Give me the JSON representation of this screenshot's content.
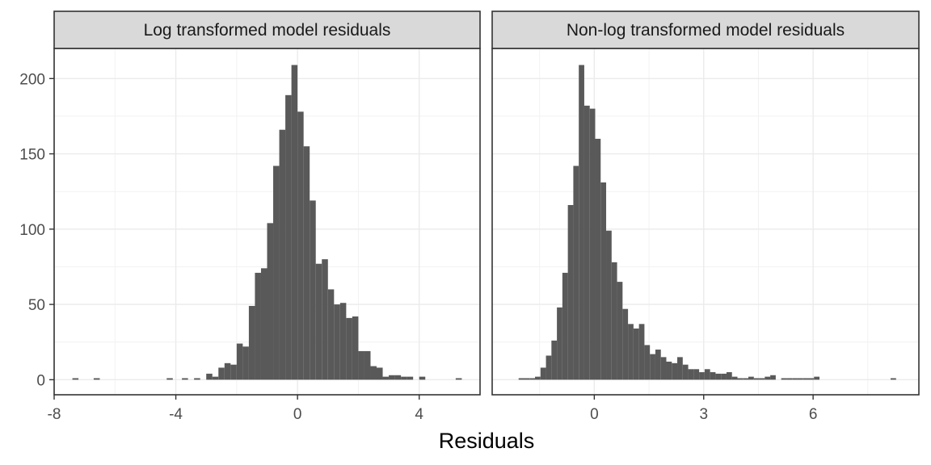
{
  "chart_data": {
    "type": "bar",
    "xlabel": "Residuals",
    "ylabel": "",
    "ylim": [
      -10,
      220
    ],
    "y_ticks": [
      0,
      50,
      100,
      150,
      200
    ],
    "bar_color": "#595959",
    "grid": true,
    "panels": [
      {
        "title": "Log transformed model residuals",
        "xlim": [
          -8,
          6
        ],
        "x_ticks": [
          -8,
          -4,
          0,
          4
        ],
        "x_tick_labels": [
          "-8",
          "-4",
          "0",
          "4"
        ],
        "bin_width": 0.2,
        "bins": [
          {
            "x": -7.3,
            "y": 1
          },
          {
            "x": -6.6,
            "y": 1
          },
          {
            "x": -4.2,
            "y": 1
          },
          {
            "x": -3.7,
            "y": 1
          },
          {
            "x": -3.3,
            "y": 1
          },
          {
            "x": -2.9,
            "y": 4
          },
          {
            "x": -2.7,
            "y": 2
          },
          {
            "x": -2.5,
            "y": 8
          },
          {
            "x": -2.3,
            "y": 11
          },
          {
            "x": -2.1,
            "y": 10
          },
          {
            "x": -1.9,
            "y": 24
          },
          {
            "x": -1.7,
            "y": 22
          },
          {
            "x": -1.5,
            "y": 49
          },
          {
            "x": -1.3,
            "y": 71
          },
          {
            "x": -1.1,
            "y": 74
          },
          {
            "x": -0.9,
            "y": 104
          },
          {
            "x": -0.7,
            "y": 142
          },
          {
            "x": -0.5,
            "y": 166
          },
          {
            "x": -0.3,
            "y": 189
          },
          {
            "x": -0.1,
            "y": 209
          },
          {
            "x": 0.1,
            "y": 178
          },
          {
            "x": 0.3,
            "y": 155
          },
          {
            "x": 0.5,
            "y": 119
          },
          {
            "x": 0.7,
            "y": 77
          },
          {
            "x": 0.9,
            "y": 80
          },
          {
            "x": 1.1,
            "y": 60
          },
          {
            "x": 1.3,
            "y": 50
          },
          {
            "x": 1.5,
            "y": 51
          },
          {
            "x": 1.7,
            "y": 41
          },
          {
            "x": 1.9,
            "y": 42
          },
          {
            "x": 2.1,
            "y": 19
          },
          {
            "x": 2.3,
            "y": 19
          },
          {
            "x": 2.5,
            "y": 9
          },
          {
            "x": 2.7,
            "y": 8
          },
          {
            "x": 2.9,
            "y": 2
          },
          {
            "x": 3.1,
            "y": 3
          },
          {
            "x": 3.3,
            "y": 3
          },
          {
            "x": 3.5,
            "y": 2
          },
          {
            "x": 3.7,
            "y": 2
          },
          {
            "x": 4.1,
            "y": 2
          },
          {
            "x": 5.3,
            "y": 1
          }
        ]
      },
      {
        "title": "Non-log transformed model residuals",
        "xlim": [
          -2.8,
          8.9
        ],
        "x_ticks": [
          0,
          3,
          6
        ],
        "x_tick_labels": [
          "0",
          "3",
          "6"
        ],
        "bin_width": 0.15,
        "bins": [
          {
            "x": -2.0,
            "y": 1
          },
          {
            "x": -1.85,
            "y": 1
          },
          {
            "x": -1.7,
            "y": 1
          },
          {
            "x": -1.55,
            "y": 2
          },
          {
            "x": -1.4,
            "y": 8
          },
          {
            "x": -1.25,
            "y": 16
          },
          {
            "x": -1.1,
            "y": 26
          },
          {
            "x": -0.95,
            "y": 48
          },
          {
            "x": -0.8,
            "y": 71
          },
          {
            "x": -0.65,
            "y": 116
          },
          {
            "x": -0.5,
            "y": 142
          },
          {
            "x": -0.35,
            "y": 209
          },
          {
            "x": -0.2,
            "y": 182
          },
          {
            "x": -0.05,
            "y": 180
          },
          {
            "x": 0.1,
            "y": 160
          },
          {
            "x": 0.25,
            "y": 131
          },
          {
            "x": 0.4,
            "y": 99
          },
          {
            "x": 0.55,
            "y": 78
          },
          {
            "x": 0.7,
            "y": 65
          },
          {
            "x": 0.85,
            "y": 47
          },
          {
            "x": 1.0,
            "y": 37
          },
          {
            "x": 1.15,
            "y": 34
          },
          {
            "x": 1.3,
            "y": 37
          },
          {
            "x": 1.45,
            "y": 23
          },
          {
            "x": 1.6,
            "y": 17
          },
          {
            "x": 1.75,
            "y": 20
          },
          {
            "x": 1.9,
            "y": 15
          },
          {
            "x": 2.05,
            "y": 12
          },
          {
            "x": 2.2,
            "y": 11
          },
          {
            "x": 2.35,
            "y": 15
          },
          {
            "x": 2.5,
            "y": 10
          },
          {
            "x": 2.65,
            "y": 7
          },
          {
            "x": 2.8,
            "y": 7
          },
          {
            "x": 2.95,
            "y": 5
          },
          {
            "x": 3.1,
            "y": 7
          },
          {
            "x": 3.25,
            "y": 5
          },
          {
            "x": 3.4,
            "y": 4
          },
          {
            "x": 3.55,
            "y": 4
          },
          {
            "x": 3.7,
            "y": 5
          },
          {
            "x": 3.85,
            "y": 2
          },
          {
            "x": 4.0,
            "y": 1
          },
          {
            "x": 4.15,
            "y": 1
          },
          {
            "x": 4.3,
            "y": 2
          },
          {
            "x": 4.45,
            "y": 1
          },
          {
            "x": 4.6,
            "y": 1
          },
          {
            "x": 4.75,
            "y": 2
          },
          {
            "x": 4.9,
            "y": 3
          },
          {
            "x": 5.2,
            "y": 1
          },
          {
            "x": 5.35,
            "y": 1
          },
          {
            "x": 5.5,
            "y": 1
          },
          {
            "x": 5.65,
            "y": 1
          },
          {
            "x": 5.8,
            "y": 1
          },
          {
            "x": 5.95,
            "y": 1
          },
          {
            "x": 6.1,
            "y": 2
          },
          {
            "x": 8.2,
            "y": 1
          }
        ]
      }
    ]
  }
}
